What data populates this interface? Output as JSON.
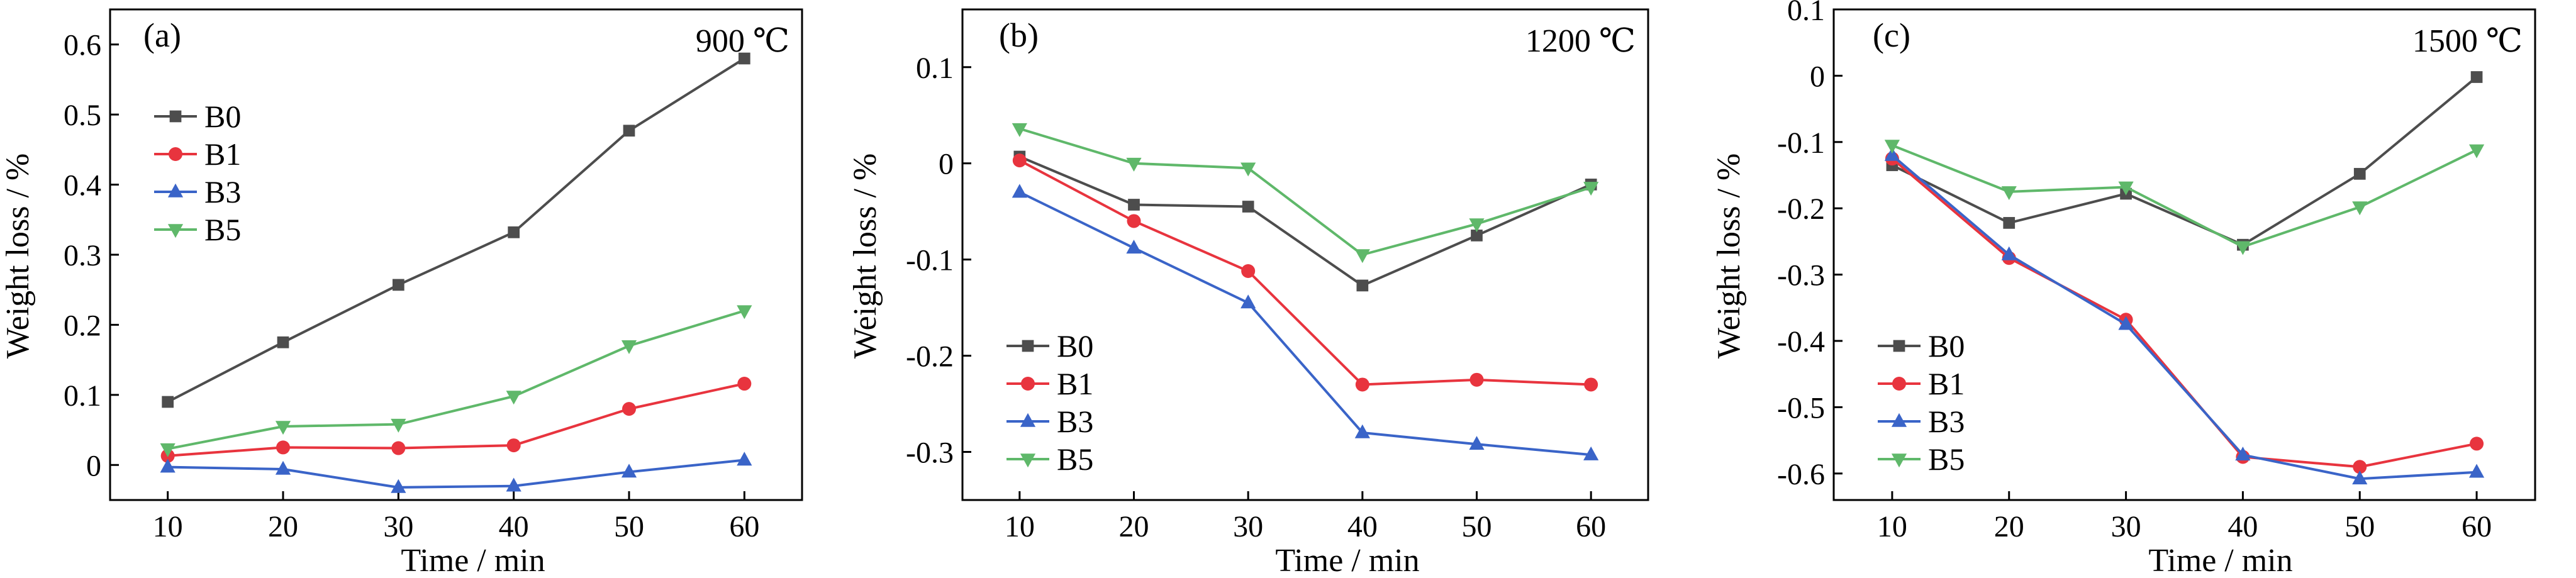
{
  "colors": {
    "B0": "#4d4d4d",
    "B1": "#e8343e",
    "B3": "#3a64c8",
    "B5": "#5fb86a"
  },
  "markers": {
    "B0": "square",
    "B1": "circle",
    "B3": "triangle-up",
    "B5": "triangle-down"
  },
  "chart_data": [
    {
      "type": "line",
      "panel_label": "(a)",
      "temperature_label": "900 ℃",
      "xlabel": "Time / min",
      "ylabel": "Weight loss / %",
      "x": [
        10,
        20,
        30,
        40,
        50,
        60
      ],
      "xlim": [
        5,
        65
      ],
      "ylim": [
        -0.05,
        0.65
      ],
      "yticks": [
        0,
        0.1,
        0.2,
        0.3,
        0.4,
        0.5,
        0.6
      ],
      "ytick_labels": [
        "0",
        "0.1",
        "0.2",
        "0.3",
        "0.4",
        "0.5",
        "0.6"
      ],
      "legend_position": "upper-left",
      "series": [
        {
          "name": "B0",
          "values": [
            0.09,
            0.175,
            0.257,
            0.332,
            0.477,
            0.58
          ]
        },
        {
          "name": "B1",
          "values": [
            0.013,
            0.025,
            0.024,
            0.028,
            0.08,
            0.116
          ]
        },
        {
          "name": "B3",
          "values": [
            -0.003,
            -0.006,
            -0.032,
            -0.03,
            -0.01,
            0.007
          ]
        },
        {
          "name": "B5",
          "values": [
            0.023,
            0.055,
            0.058,
            0.098,
            0.17,
            0.22
          ]
        }
      ]
    },
    {
      "type": "line",
      "panel_label": "(b)",
      "temperature_label": "1200 ℃",
      "xlabel": "Time / min",
      "ylabel": "Weight loss / %",
      "x": [
        10,
        20,
        30,
        40,
        50,
        60
      ],
      "xlim": [
        5,
        65
      ],
      "ylim": [
        -0.35,
        0.16
      ],
      "yticks": [
        -0.3,
        -0.2,
        -0.1,
        0,
        0.1
      ],
      "ytick_labels": [
        "-0.3",
        "-0.2",
        "-0.1",
        "0",
        "0.1"
      ],
      "legend_position": "lower-left",
      "series": [
        {
          "name": "B0",
          "values": [
            0.007,
            -0.043,
            -0.045,
            -0.127,
            -0.075,
            -0.022
          ]
        },
        {
          "name": "B1",
          "values": [
            0.003,
            -0.06,
            -0.112,
            -0.23,
            -0.225,
            -0.23
          ]
        },
        {
          "name": "B3",
          "values": [
            -0.03,
            -0.088,
            -0.145,
            -0.28,
            -0.292,
            -0.303
          ]
        },
        {
          "name": "B5",
          "values": [
            0.036,
            0.0,
            -0.005,
            -0.095,
            -0.063,
            -0.025
          ]
        }
      ]
    },
    {
      "type": "line",
      "panel_label": "(c)",
      "temperature_label": "1500 ℃",
      "xlabel": "Time / min",
      "ylabel": "Weight loss / %",
      "x": [
        10,
        20,
        30,
        40,
        50,
        60
      ],
      "xlim": [
        5,
        65
      ],
      "ylim": [
        -0.64,
        0.1
      ],
      "yticks": [
        -0.6,
        -0.5,
        -0.4,
        -0.3,
        -0.2,
        -0.1,
        0,
        0.1
      ],
      "ytick_labels": [
        "-0.6",
        "-0.5",
        "-0.4",
        "-0.3",
        "-0.2",
        "-0.1",
        "0",
        "0.1"
      ],
      "legend_position": "lower-left",
      "series": [
        {
          "name": "B0",
          "values": [
            -0.135,
            -0.222,
            -0.178,
            -0.255,
            -0.148,
            -0.002
          ]
        },
        {
          "name": "B1",
          "values": [
            -0.125,
            -0.275,
            -0.368,
            -0.575,
            -0.59,
            -0.555
          ]
        },
        {
          "name": "B3",
          "values": [
            -0.12,
            -0.27,
            -0.375,
            -0.572,
            -0.608,
            -0.598
          ]
        },
        {
          "name": "B5",
          "values": [
            -0.105,
            -0.175,
            -0.168,
            -0.258,
            -0.198,
            -0.112
          ]
        }
      ]
    }
  ]
}
